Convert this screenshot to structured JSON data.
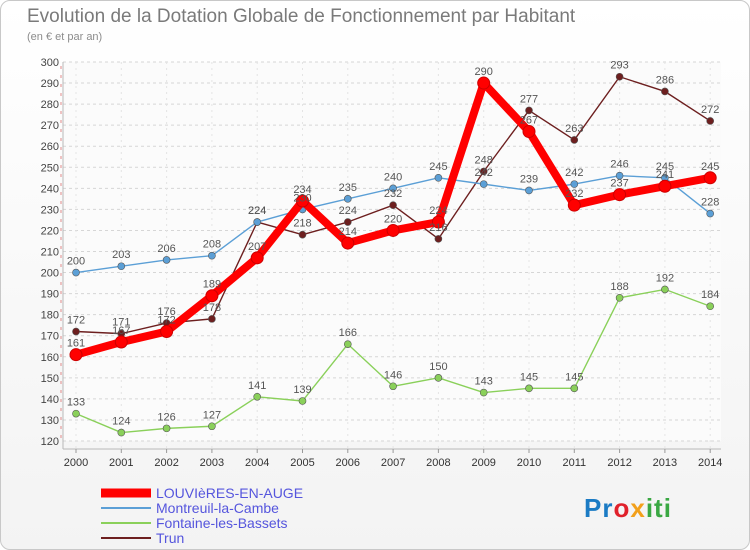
{
  "title": "Evolution de la Dotation Globale de Fonctionnement par Habitant",
  "subtitle": "(en € et par an)",
  "logo": {
    "p1": "Pr",
    "p2": "o",
    "p3": "x",
    "p4": "iti"
  },
  "chart_data": {
    "type": "line",
    "title": "Evolution de la Dotation Globale de Fonctionnement par Habitant",
    "subtitle": "(en € et par an)",
    "xlabel": "",
    "ylabel": "",
    "x": [
      "2000",
      "2001",
      "2002",
      "2003",
      "2004",
      "2005",
      "2006",
      "2007",
      "2008",
      "2009",
      "2010",
      "2011",
      "2012",
      "2013",
      "2014"
    ],
    "ylim": [
      120,
      300
    ],
    "yticks": [
      120,
      130,
      140,
      150,
      160,
      170,
      180,
      190,
      200,
      210,
      220,
      230,
      240,
      250,
      260,
      270,
      280,
      290,
      300
    ],
    "grid": true,
    "legend": "bottom-left",
    "series": [
      {
        "name": "LOUVIèRES-EN-AUGE",
        "color": "#ff0000",
        "values": [
          161,
          167,
          172,
          189,
          207,
          234,
          214,
          220,
          224,
          290,
          267,
          232,
          237,
          241,
          245
        ]
      },
      {
        "name": "Montreuil-la-Cambe",
        "color": "#5b9fd6",
        "values": [
          200,
          203,
          206,
          208,
          224,
          230,
          235,
          240,
          245,
          242,
          239,
          242,
          246,
          245,
          228
        ]
      },
      {
        "name": "Fontaine-les-Bassets",
        "color": "#8ad05a",
        "values": [
          133,
          124,
          126,
          127,
          141,
          139,
          166,
          146,
          150,
          143,
          145,
          145,
          188,
          192,
          184
        ]
      },
      {
        "name": "Trun",
        "color": "#6d1f1f",
        "values": [
          172,
          171,
          176,
          178,
          224,
          218,
          224,
          232,
          216,
          248,
          277,
          263,
          293,
          286,
          272
        ]
      }
    ]
  }
}
